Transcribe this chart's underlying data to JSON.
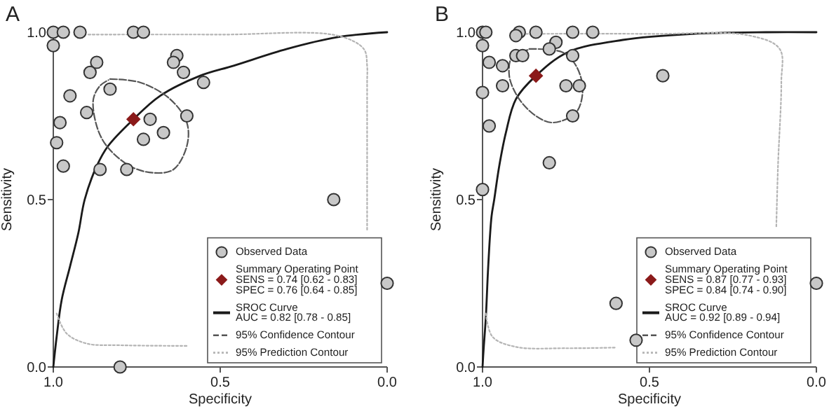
{
  "chart_data": [
    {
      "type": "scatter",
      "title": "A",
      "xlabel": "Specificity",
      "ylabel": "Sensitivity",
      "xlim": [
        1,
        0
      ],
      "ylim": [
        0,
        1
      ],
      "xticks": [
        {
          "value": 1,
          "label": "1.0"
        },
        {
          "value": 0.5,
          "label": "0.5"
        },
        {
          "value": 0,
          "label": "0.0"
        }
      ],
      "yticks": [
        {
          "value": 0,
          "label": "0.0"
        },
        {
          "value": 0.5,
          "label": "0.5"
        },
        {
          "value": 1,
          "label": "1.0"
        }
      ],
      "legend": "bottom right",
      "series": [
        {
          "name": "Observed Data",
          "type": "scatter",
          "marker": "circle",
          "color": "#c8c8c8",
          "x": [
            1.0,
            0.97,
            0.92,
            0.76,
            0.73,
            1.0,
            0.63,
            0.64,
            0.87,
            0.89,
            0.61,
            0.55,
            0.83,
            0.95,
            0.9,
            0.6,
            0.71,
            0.98,
            0.67,
            0.99,
            0.73,
            0.97,
            0.86,
            0.78,
            0.16,
            0.0,
            0.8
          ],
          "values": [
            1.0,
            1.0,
            1.0,
            1.0,
            1.0,
            0.96,
            0.93,
            0.91,
            0.91,
            0.88,
            0.88,
            0.85,
            0.83,
            0.81,
            0.76,
            0.75,
            0.74,
            0.73,
            0.7,
            0.67,
            0.68,
            0.6,
            0.59,
            0.59,
            0.5,
            0.25,
            0.0
          ]
        },
        {
          "name": "Summary Operating Point\nSENS = 0.74 [0.62 - 0.83]\nSPEC = 0.76 [0.64 - 0.85]",
          "type": "scatter",
          "marker": "diamond",
          "color": "#8b1a1a",
          "x": [
            0.76
          ],
          "values": [
            0.74
          ]
        },
        {
          "name": "SROC Curve\nAUC = 0.82 [0.78 - 0.85]",
          "type": "line",
          "line_style": "solid",
          "color": "#1a1a1a",
          "x": [
            1.0,
            0.99,
            0.975,
            0.95,
            0.925,
            0.906,
            0.87,
            0.836,
            0.76,
            0.68,
            0.56,
            0.46,
            0.3,
            0.15,
            0.0
          ],
          "values": [
            0.0,
            0.09,
            0.2,
            0.3,
            0.4,
            0.5,
            0.6,
            0.66,
            0.74,
            0.81,
            0.87,
            0.9,
            0.95,
            0.985,
            1.0
          ]
        },
        {
          "name": "95% Confidence Contour",
          "type": "line",
          "line_style": "dashed",
          "color": "#555555",
          "x": [
            0.83,
            0.74,
            0.65,
            0.6,
            0.6,
            0.64,
            0.7,
            0.77,
            0.84,
            0.87,
            0.88,
            0.86,
            0.835
          ],
          "values": [
            0.86,
            0.85,
            0.8,
            0.73,
            0.66,
            0.59,
            0.58,
            0.6,
            0.66,
            0.72,
            0.8,
            0.84,
            0.857
          ]
        },
        {
          "name": "95% Prediction Contour",
          "type": "line",
          "line_style": "dotted",
          "color": "#b4b4b4",
          "x": [
            0.99,
            0.96,
            0.9,
            0.8,
            0.6,
            0.55,
            0.06,
            0.06,
            0.06,
            0.06,
            0.07,
            0.15,
            0.5,
            0.9
          ],
          "values": [
            0.16,
            0.1,
            0.07,
            0.065,
            0.063,
            null,
            0.41,
            0.6,
            0.85,
            0.9,
            0.95,
            0.99,
            0.993,
            0.993
          ]
        }
      ]
    },
    {
      "type": "scatter",
      "title": "B",
      "xlabel": "Specificity",
      "ylabel": "Sensitivity",
      "xlim": [
        1,
        0
      ],
      "ylim": [
        0,
        1
      ],
      "xticks": [
        {
          "value": 1,
          "label": "1.0"
        },
        {
          "value": 0.5,
          "label": "0.5"
        },
        {
          "value": 0,
          "label": "0.0"
        }
      ],
      "yticks": [
        {
          "value": 0,
          "label": "0.0"
        },
        {
          "value": 0.5,
          "label": "0.5"
        },
        {
          "value": 1,
          "label": "1.0"
        }
      ],
      "legend": "bottom right",
      "series": [
        {
          "name": "Observed Data",
          "type": "scatter",
          "marker": "circle",
          "color": "#c8c8c8",
          "x": [
            1.0,
            0.99,
            0.89,
            0.84,
            0.73,
            0.67,
            0.9,
            1.0,
            0.78,
            0.8,
            0.98,
            0.94,
            0.9,
            0.88,
            0.73,
            0.46,
            0.94,
            0.75,
            0.71,
            1.0,
            0.73,
            0.98,
            0.8,
            1.0,
            0.6,
            0.54,
            0.0
          ],
          "values": [
            1.0,
            1.0,
            1.0,
            1.0,
            1.0,
            1.0,
            0.99,
            0.96,
            0.97,
            0.95,
            0.91,
            0.9,
            0.93,
            0.93,
            0.93,
            0.87,
            0.84,
            0.84,
            0.84,
            0.82,
            0.75,
            0.72,
            0.61,
            0.53,
            0.19,
            0.08,
            0.25
          ]
        },
        {
          "name": "Summary Operating Point\nSENS = 0.87 [0.77 - 0.93]\nSPEC = 0.84 [0.74 - 0.90]",
          "type": "scatter",
          "marker": "diamond",
          "color": "#8b1a1a",
          "x": [
            0.84
          ],
          "values": [
            0.87
          ]
        },
        {
          "name": "SROC Curve\nAUC = 0.92 [0.89 - 0.94]",
          "type": "line",
          "line_style": "solid",
          "color": "#1a1a1a",
          "x": [
            1.0,
            0.997,
            0.99,
            0.983,
            0.973,
            0.965,
            0.95,
            0.93,
            0.9,
            0.84,
            0.745,
            0.58,
            0.37,
            0.15,
            0.0
          ],
          "values": [
            0.0,
            0.05,
            0.15,
            0.3,
            0.45,
            0.5,
            0.6,
            0.7,
            0.8,
            0.87,
            0.94,
            0.977,
            0.995,
            1.0,
            1.0
          ]
        },
        {
          "name": "95% Confidence Contour",
          "type": "line",
          "line_style": "dashed",
          "color": "#555555",
          "x": [
            0.86,
            0.76,
            0.72,
            0.7,
            0.72,
            0.79,
            0.84,
            0.89,
            0.92,
            0.91,
            0.865
          ],
          "values": [
            0.95,
            0.94,
            0.9,
            0.83,
            0.76,
            0.73,
            0.75,
            0.8,
            0.87,
            0.93,
            0.947
          ]
        },
        {
          "name": "95% Prediction Contour",
          "type": "line",
          "line_style": "dotted",
          "color": "#b4b4b4",
          "x": [
            0.99,
            0.97,
            0.9,
            0.75,
            0.6,
            0.55,
            0.12,
            0.115,
            0.105,
            0.11,
            0.2,
            0.5,
            0.9
          ],
          "values": [
            0.16,
            0.09,
            0.06,
            0.056,
            0.058,
            null,
            0.42,
            0.6,
            0.85,
            0.95,
            0.99,
            0.995,
            0.995
          ]
        }
      ]
    }
  ]
}
